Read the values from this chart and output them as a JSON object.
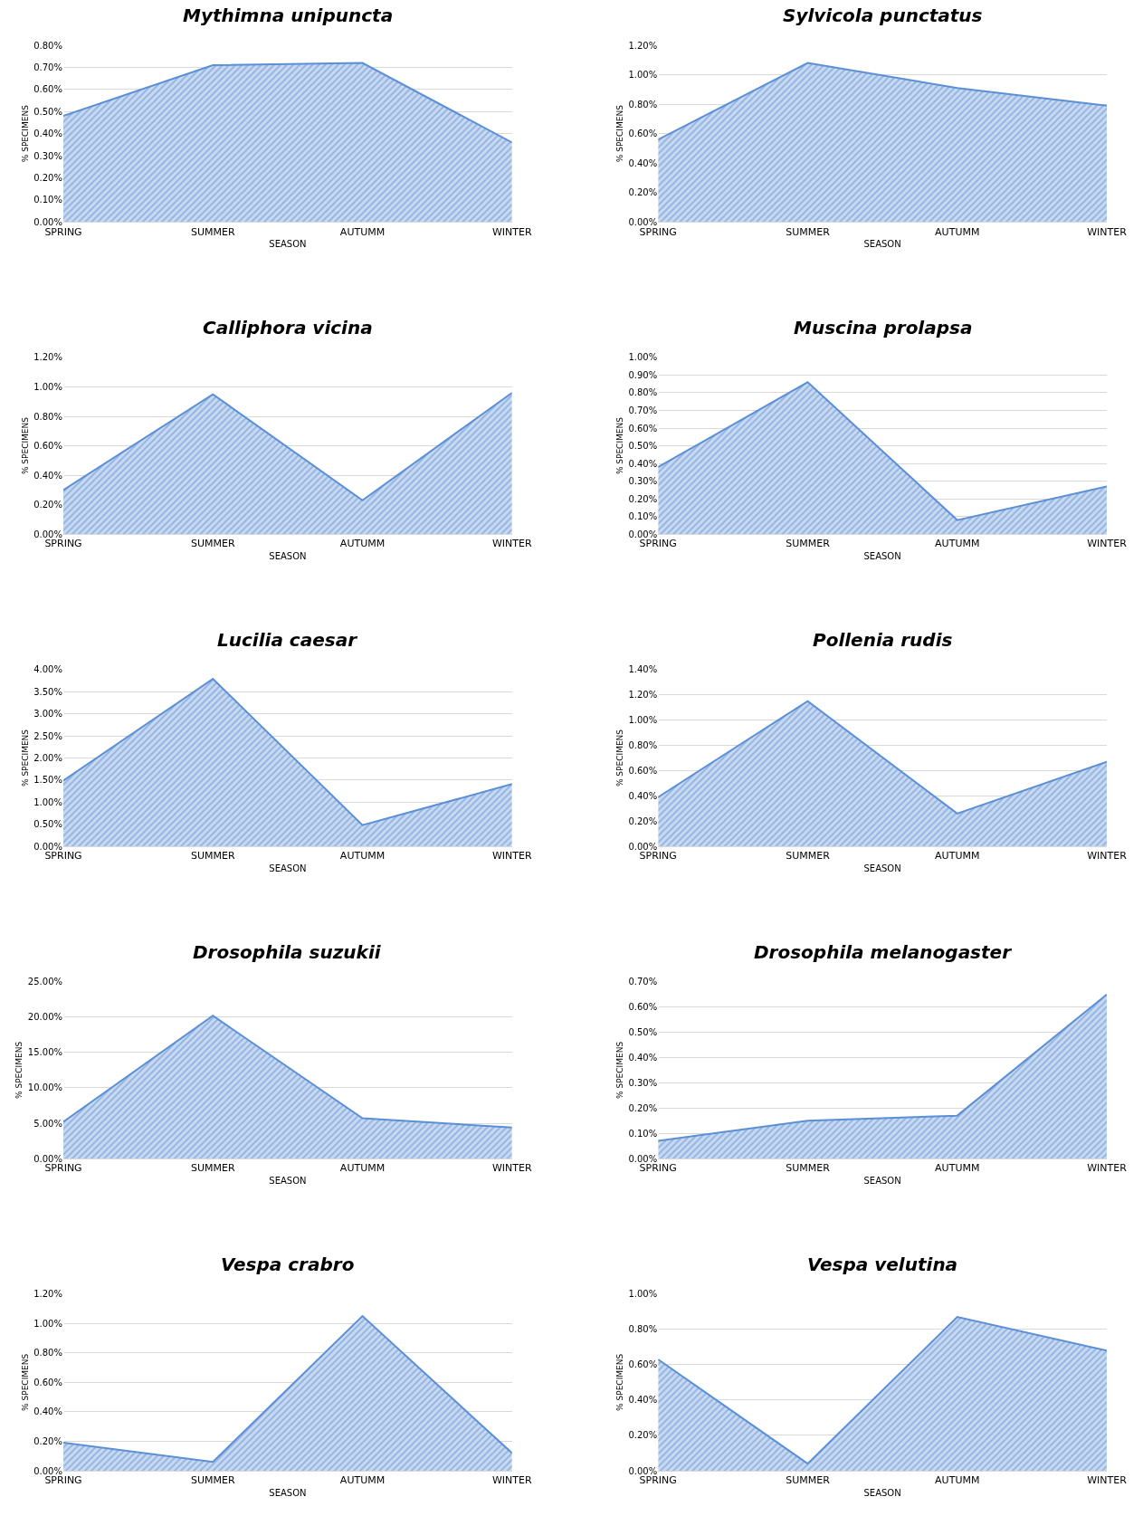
{
  "chart_data": [
    {
      "type": "area",
      "title": "Mythimna unipuncta",
      "xlabel": "SEASON",
      "ylabel": "% SPECIMENS",
      "categories": [
        "SPRING",
        "SUMMER",
        "AUTUMM",
        "WINTER"
      ],
      "series": [
        {
          "color": "#5b8fd6",
          "values": [
            0.48,
            0.71,
            0.72,
            0.36
          ]
        }
      ],
      "ylim": [
        0,
        0.8
      ],
      "yticks": [
        {
          "value": 0,
          "label": "0.00%"
        },
        {
          "value": 0.1,
          "label": "0.10%"
        },
        {
          "value": 0.2,
          "label": "0.20%"
        },
        {
          "value": 0.3,
          "label": "0.30%"
        },
        {
          "value": 0.4,
          "label": "0.40%"
        },
        {
          "value": 0.5,
          "label": "0.50%"
        },
        {
          "value": 0.6,
          "label": "0.60%"
        },
        {
          "value": 0.7,
          "label": "0.70%"
        },
        {
          "value": 0.8,
          "label": "0.80%"
        }
      ],
      "grid": "y"
    },
    {
      "type": "area",
      "title": "Sylvicola punctatus",
      "xlabel": "SEASON",
      "ylabel": "% SPECIMENS",
      "categories": [
        "SPRING",
        "SUMMER",
        "AUTUMM",
        "WINTER"
      ],
      "series": [
        {
          "color": "#5b8fd6",
          "values": [
            0.56,
            1.08,
            0.91,
            0.79
          ]
        }
      ],
      "ylim": [
        0,
        1.2
      ],
      "yticks": [
        {
          "value": 0,
          "label": "0.00%"
        },
        {
          "value": 0.2,
          "label": "0.20%"
        },
        {
          "value": 0.4,
          "label": "0.40%"
        },
        {
          "value": 0.6,
          "label": "0.60%"
        },
        {
          "value": 0.8,
          "label": "0.80%"
        },
        {
          "value": 1.0,
          "label": "1.00%"
        },
        {
          "value": 1.2,
          "label": "1.20%"
        }
      ],
      "grid": "y"
    },
    {
      "type": "area",
      "title": "Calliphora vicina",
      "xlabel": "SEASON",
      "ylabel": "% SPECIMENS",
      "categories": [
        "SPRING",
        "SUMMER",
        "AUTUMM",
        "WINTER"
      ],
      "series": [
        {
          "color": "#5b8fd6",
          "values": [
            0.3,
            0.95,
            0.23,
            0.96
          ]
        }
      ],
      "ylim": [
        0,
        1.2
      ],
      "yticks": [
        {
          "value": 0,
          "label": "0.00%"
        },
        {
          "value": 0.2,
          "label": "0.20%"
        },
        {
          "value": 0.4,
          "label": "0.40%"
        },
        {
          "value": 0.6,
          "label": "0.60%"
        },
        {
          "value": 0.8,
          "label": "0.80%"
        },
        {
          "value": 1.0,
          "label": "1.00%"
        },
        {
          "value": 1.2,
          "label": "1.20%"
        }
      ],
      "grid": "y"
    },
    {
      "type": "area",
      "title": "Muscina prolapsa",
      "xlabel": "SEASON",
      "ylabel": "% SPECIMENS",
      "categories": [
        "SPRING",
        "SUMMER",
        "AUTUMM",
        "WINTER"
      ],
      "series": [
        {
          "color": "#5b8fd6",
          "values": [
            0.38,
            0.86,
            0.08,
            0.27
          ]
        }
      ],
      "ylim": [
        0,
        1.0
      ],
      "yticks": [
        {
          "value": 0,
          "label": "0.00%"
        },
        {
          "value": 0.1,
          "label": "0.10%"
        },
        {
          "value": 0.2,
          "label": "0.20%"
        },
        {
          "value": 0.3,
          "label": "0.30%"
        },
        {
          "value": 0.4,
          "label": "0.40%"
        },
        {
          "value": 0.5,
          "label": "0.50%"
        },
        {
          "value": 0.6,
          "label": "0.60%"
        },
        {
          "value": 0.7,
          "label": "0.70%"
        },
        {
          "value": 0.8,
          "label": "0.80%"
        },
        {
          "value": 0.9,
          "label": "0.90%"
        },
        {
          "value": 1.0,
          "label": "1.00%"
        }
      ],
      "grid": "y"
    },
    {
      "type": "area",
      "title": "Lucilia caesar",
      "xlabel": "SEASON",
      "ylabel": "% SPECIMENS",
      "categories": [
        "SPRING",
        "SUMMER",
        "AUTUMM",
        "WINTER"
      ],
      "series": [
        {
          "color": "#5b8fd6",
          "values": [
            1.49,
            3.79,
            0.48,
            1.41
          ]
        }
      ],
      "ylim": [
        0,
        4.0
      ],
      "yticks": [
        {
          "value": 0,
          "label": "0.00%"
        },
        {
          "value": 0.5,
          "label": "0.50%"
        },
        {
          "value": 1.0,
          "label": "1.00%"
        },
        {
          "value": 1.5,
          "label": "1.50%"
        },
        {
          "value": 2.0,
          "label": "2.00%"
        },
        {
          "value": 2.5,
          "label": "2.50%"
        },
        {
          "value": 3.0,
          "label": "3.00%"
        },
        {
          "value": 3.5,
          "label": "3.50%"
        },
        {
          "value": 4.0,
          "label": "4.00%"
        }
      ],
      "grid": "y"
    },
    {
      "type": "area",
      "title": "Pollenia rudis",
      "xlabel": "SEASON",
      "ylabel": "% SPECIMENS",
      "categories": [
        "SPRING",
        "SUMMER",
        "AUTUMM",
        "WINTER"
      ],
      "series": [
        {
          "color": "#5b8fd6",
          "values": [
            0.39,
            1.15,
            0.26,
            0.67
          ]
        }
      ],
      "ylim": [
        0,
        1.4
      ],
      "yticks": [
        {
          "value": 0,
          "label": "0.00%"
        },
        {
          "value": 0.2,
          "label": "0.20%"
        },
        {
          "value": 0.4,
          "label": "0.40%"
        },
        {
          "value": 0.6,
          "label": "0.60%"
        },
        {
          "value": 0.8,
          "label": "0.80%"
        },
        {
          "value": 1.0,
          "label": "1.00%"
        },
        {
          "value": 1.2,
          "label": "1.20%"
        },
        {
          "value": 1.4,
          "label": "1.40%"
        }
      ],
      "grid": "y"
    },
    {
      "type": "area",
      "title": "Drosophila suzukii",
      "xlabel": "SEASON",
      "ylabel": "% SPECIMENS",
      "categories": [
        "SPRING",
        "SUMMER",
        "AUTUMM",
        "WINTER"
      ],
      "series": [
        {
          "color": "#5b8fd6",
          "values": [
            5.2,
            20.2,
            5.7,
            4.4
          ]
        }
      ],
      "ylim": [
        0,
        25
      ],
      "yticks": [
        {
          "value": 0,
          "label": "0.00%"
        },
        {
          "value": 5,
          "label": "5.00%"
        },
        {
          "value": 10,
          "label": "10.00%"
        },
        {
          "value": 15,
          "label": "15.00%"
        },
        {
          "value": 20,
          "label": "20.00%"
        },
        {
          "value": 25,
          "label": "25.00%"
        }
      ],
      "grid": "y"
    },
    {
      "type": "area",
      "title": "Drosophila melanogaster",
      "xlabel": "SEASON",
      "ylabel": "% SPECIMENS",
      "categories": [
        "SPRING",
        "SUMMER",
        "AUTUMM",
        "WINTER"
      ],
      "series": [
        {
          "color": "#5b8fd6",
          "values": [
            0.07,
            0.15,
            0.17,
            0.65
          ]
        }
      ],
      "ylim": [
        0,
        0.7
      ],
      "yticks": [
        {
          "value": 0,
          "label": "0.00%"
        },
        {
          "value": 0.1,
          "label": "0.10%"
        },
        {
          "value": 0.2,
          "label": "0.20%"
        },
        {
          "value": 0.3,
          "label": "0.30%"
        },
        {
          "value": 0.4,
          "label": "0.40%"
        },
        {
          "value": 0.5,
          "label": "0.50%"
        },
        {
          "value": 0.6,
          "label": "0.60%"
        },
        {
          "value": 0.7,
          "label": "0.70%"
        }
      ],
      "grid": "y"
    },
    {
      "type": "area",
      "title": "Vespa crabro",
      "xlabel": "SEASON",
      "ylabel": "% SPECIMENS",
      "categories": [
        "SPRING",
        "SUMMER",
        "AUTUMM",
        "WINTER"
      ],
      "series": [
        {
          "color": "#5b8fd6",
          "values": [
            0.19,
            0.06,
            1.05,
            0.12
          ]
        }
      ],
      "ylim": [
        0,
        1.2
      ],
      "yticks": [
        {
          "value": 0,
          "label": "0.00%"
        },
        {
          "value": 0.2,
          "label": "0.20%"
        },
        {
          "value": 0.4,
          "label": "0.40%"
        },
        {
          "value": 0.6,
          "label": "0.60%"
        },
        {
          "value": 0.8,
          "label": "0.80%"
        },
        {
          "value": 1.0,
          "label": "1.00%"
        },
        {
          "value": 1.2,
          "label": "1.20%"
        }
      ],
      "grid": "y"
    },
    {
      "type": "area",
      "title": "Vespa velutina",
      "xlabel": "SEASON",
      "ylabel": "% SPECIMENS",
      "categories": [
        "SPRING",
        "SUMMER",
        "AUTUMM",
        "WINTER"
      ],
      "series": [
        {
          "color": "#5b8fd6",
          "values": [
            0.63,
            0.04,
            0.87,
            0.68
          ]
        }
      ],
      "ylim": [
        0,
        1.0
      ],
      "yticks": [
        {
          "value": 0,
          "label": "0.00%"
        },
        {
          "value": 0.2,
          "label": "0.20%"
        },
        {
          "value": 0.4,
          "label": "0.40%"
        },
        {
          "value": 0.6,
          "label": "0.60%"
        },
        {
          "value": 0.8,
          "label": "0.80%"
        },
        {
          "value": 1.0,
          "label": "1.00%"
        }
      ],
      "grid": "y"
    }
  ]
}
